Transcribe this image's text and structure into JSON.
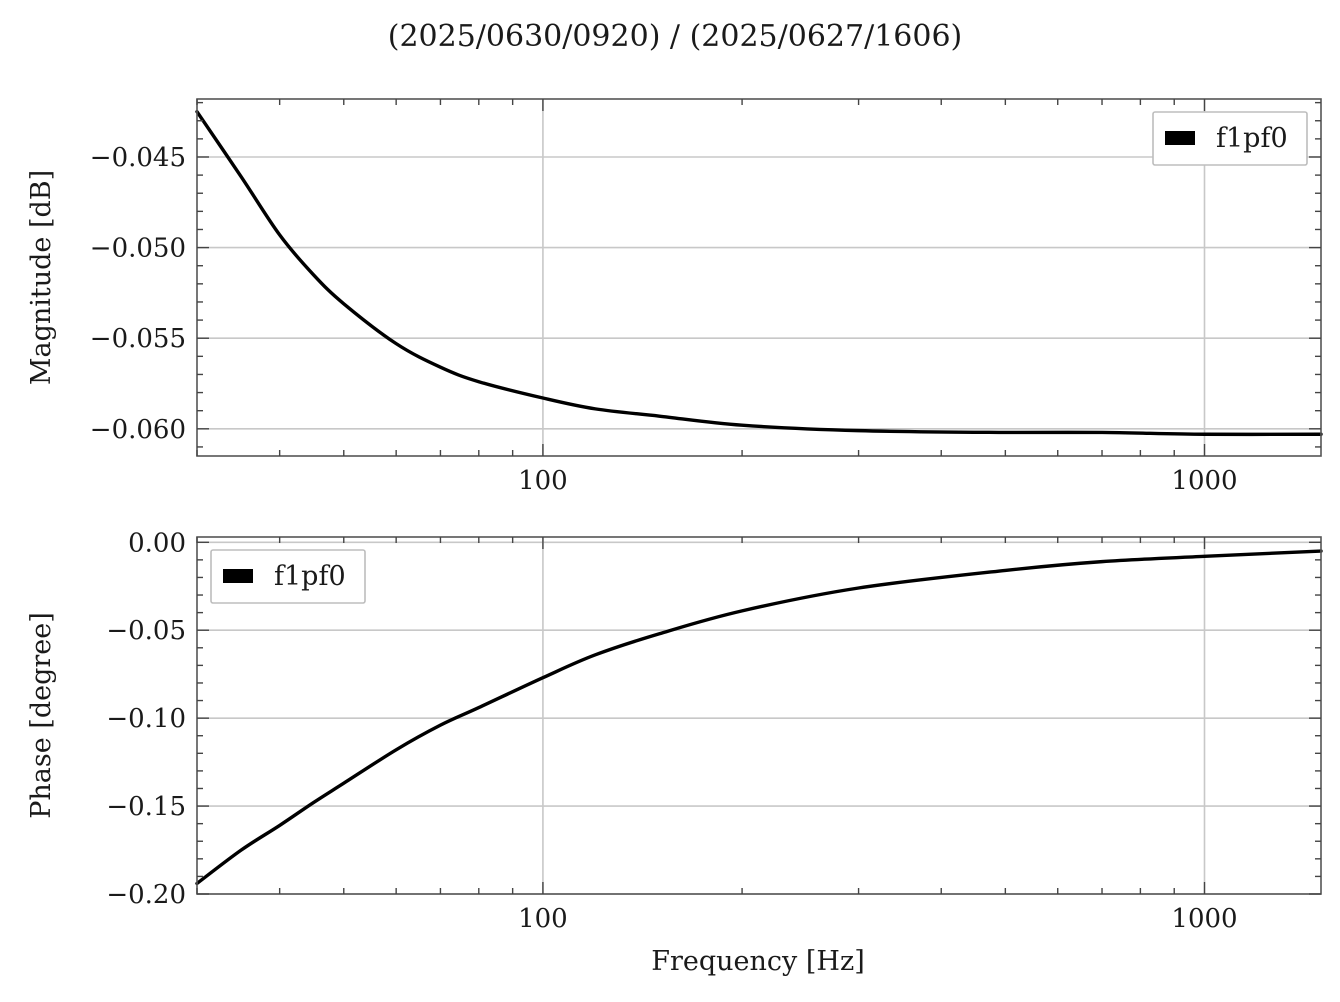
{
  "chart_data": [
    {
      "type": "line",
      "title": "(2025/0630/0920) / (2025/0627/1606)",
      "xlabel": "",
      "ylabel": "Magnitude [dB]",
      "xscale": "log",
      "xlim": [
        30,
        1500
      ],
      "ylim": [
        -0.0615,
        -0.0418
      ],
      "xticks": [
        100,
        1000
      ],
      "xtick_labels": [
        "100",
        "1000"
      ],
      "yticks": [
        -0.045,
        -0.05,
        -0.055,
        -0.06
      ],
      "ytick_labels": [
        "−0.045",
        "−0.050",
        "−0.055",
        "−0.060"
      ],
      "grid": true,
      "legend": "top-right",
      "series": [
        {
          "name": "f1pf0",
          "color": "#000000",
          "x": [
            30,
            35,
            40,
            45,
            50,
            60,
            70,
            80,
            100,
            120,
            150,
            200,
            300,
            500,
            700,
            1000,
            1500
          ],
          "y": [
            -0.0425,
            -0.0461,
            -0.0493,
            -0.0515,
            -0.0531,
            -0.0553,
            -0.0566,
            -0.0574,
            -0.0583,
            -0.0589,
            -0.0593,
            -0.0598,
            -0.0601,
            -0.0602,
            -0.0602,
            -0.0603,
            -0.0603
          ]
        }
      ]
    },
    {
      "type": "line",
      "title": "",
      "xlabel": "Frequency [Hz]",
      "ylabel": "Phase [degree]",
      "xscale": "log",
      "xlim": [
        30,
        1500
      ],
      "ylim": [
        -0.2,
        0.003
      ],
      "xticks": [
        100,
        1000
      ],
      "xtick_labels": [
        "100",
        "1000"
      ],
      "yticks": [
        0.0,
        -0.05,
        -0.1,
        -0.15,
        -0.2
      ],
      "ytick_labels": [
        "0.00",
        "−0.05",
        "−0.10",
        "−0.15",
        "−0.20"
      ],
      "grid": true,
      "legend": "top-left",
      "series": [
        {
          "name": "f1pf0",
          "color": "#000000",
          "x": [
            30,
            35,
            40,
            45,
            50,
            60,
            70,
            80,
            100,
            120,
            150,
            200,
            300,
            500,
            700,
            1000,
            1500
          ],
          "y": [
            -0.194,
            -0.175,
            -0.161,
            -0.148,
            -0.137,
            -0.118,
            -0.104,
            -0.094,
            -0.077,
            -0.064,
            -0.052,
            -0.039,
            -0.026,
            -0.016,
            -0.011,
            -0.008,
            -0.005
          ]
        }
      ]
    }
  ]
}
